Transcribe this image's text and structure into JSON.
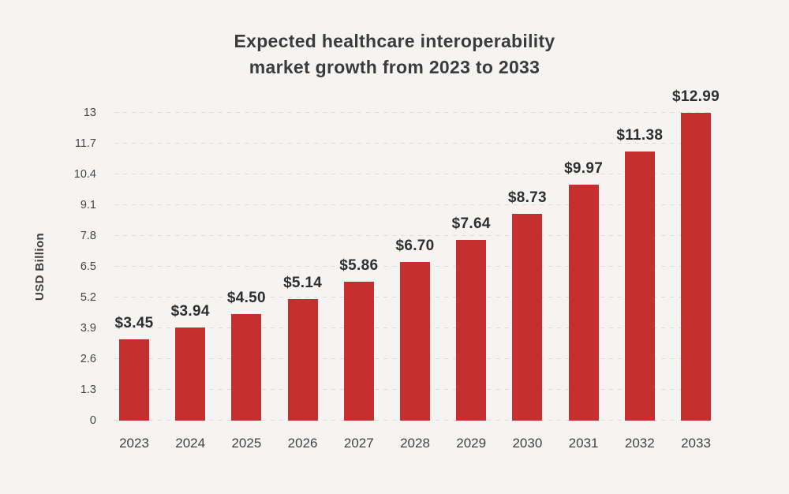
{
  "title": {
    "line1": "Expected healthcare interoperability",
    "line2": "market growth from 2023 to 2033"
  },
  "chart_data": {
    "type": "bar",
    "title": "Expected healthcare interoperability market growth from 2023 to 2033",
    "xlabel": "",
    "ylabel": "USD Billion",
    "categories": [
      "2023",
      "2024",
      "2025",
      "2026",
      "2027",
      "2028",
      "2029",
      "2030",
      "2031",
      "2032",
      "2033"
    ],
    "values": [
      3.45,
      3.94,
      4.5,
      5.14,
      5.86,
      6.7,
      7.64,
      8.73,
      9.97,
      11.38,
      12.99
    ],
    "value_labels": [
      "$3.45",
      "$3.94",
      "$4.50",
      "$5.14",
      "$5.86",
      "$6.70",
      "$7.64",
      "$8.73",
      "$9.97",
      "$11.38",
      "$12.99"
    ],
    "ytick_values": [
      0,
      1.3,
      2.6,
      3.9,
      5.2,
      6.5,
      7.8,
      9.1,
      10.4,
      11.7,
      13
    ],
    "ytick_labels": [
      "0",
      "1.3",
      "2.6",
      "3.9",
      "5.2",
      "6.5",
      "7.8",
      "9.1",
      "10.4",
      "11.7",
      "13"
    ],
    "ylim": [
      0,
      13
    ],
    "grid": "horizontal-dashed",
    "legend": "none"
  },
  "colors": {
    "background": "#f5f4f2",
    "bar": "#c5302e",
    "gridline": "#dcdbd8",
    "title_text": "#3b3b3b",
    "tick_text": "#454545",
    "value_text": "#2e2e2e"
  }
}
